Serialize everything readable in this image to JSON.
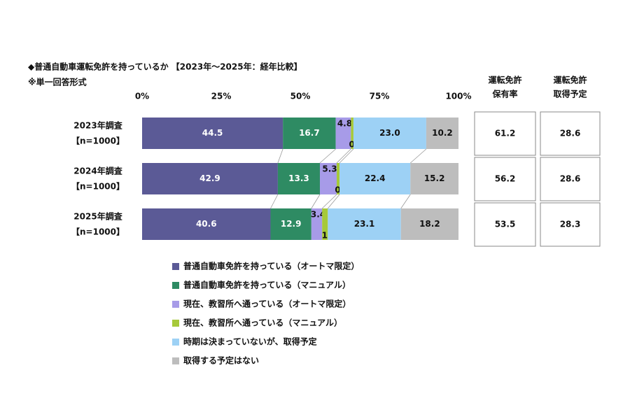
{
  "chart_data": {
    "type": "stacked-bar-horizontal",
    "title": "◆普通自動車運転免許を持っているか 【2023年～2025年：経年比較】",
    "subtitle": "※単一回答形式",
    "categories": [
      "2023年調査",
      "2024年調査",
      "2025年調査"
    ],
    "category_sublabels": [
      "【n=1000】",
      "【n=1000】",
      "【n=1000】"
    ],
    "xlim": [
      0,
      100
    ],
    "xticks": [
      {
        "value": 0,
        "label": "0%"
      },
      {
        "value": 25,
        "label": "25%"
      },
      {
        "value": 50,
        "label": "50%"
      },
      {
        "value": 75,
        "label": "75%"
      },
      {
        "value": 100,
        "label": "100%"
      }
    ],
    "series": [
      {
        "name": "普通自動車免許を持っている（オートマ限定）",
        "color": "#5b5a96",
        "values": [
          44.5,
          42.9,
          40.6
        ]
      },
      {
        "name": "普通自動車免許を持っている（マニュアル）",
        "color": "#2e8b63",
        "values": [
          16.7,
          13.3,
          12.9
        ]
      },
      {
        "name": "現在、教習所へ通っている（オートマ限定）",
        "color": "#a79be8",
        "values": [
          4.8,
          5.3,
          3.4
        ]
      },
      {
        "name": "現在、教習所へ通っている（マニュアル）",
        "color": "#a6c93a",
        "values": [
          0.8,
          0.9,
          1.8
        ]
      },
      {
        "name": "時期は決まっていないが、取得予定",
        "color": "#9dd1f5",
        "values": [
          23.0,
          22.4,
          23.1
        ],
        "value_labels": [
          "23.0",
          "22.4",
          "23.1"
        ]
      },
      {
        "name": "取得する予定はない",
        "color": "#bdbdbd",
        "values": [
          10.2,
          15.2,
          18.2
        ]
      }
    ],
    "side_table": {
      "columns": [
        {
          "header": [
            "運転免許",
            "保有率"
          ],
          "values": [
            61.2,
            56.2,
            53.5
          ]
        },
        {
          "header": [
            "運転免許",
            "取得予定"
          ],
          "values": [
            28.6,
            28.6,
            28.3
          ]
        }
      ]
    }
  }
}
